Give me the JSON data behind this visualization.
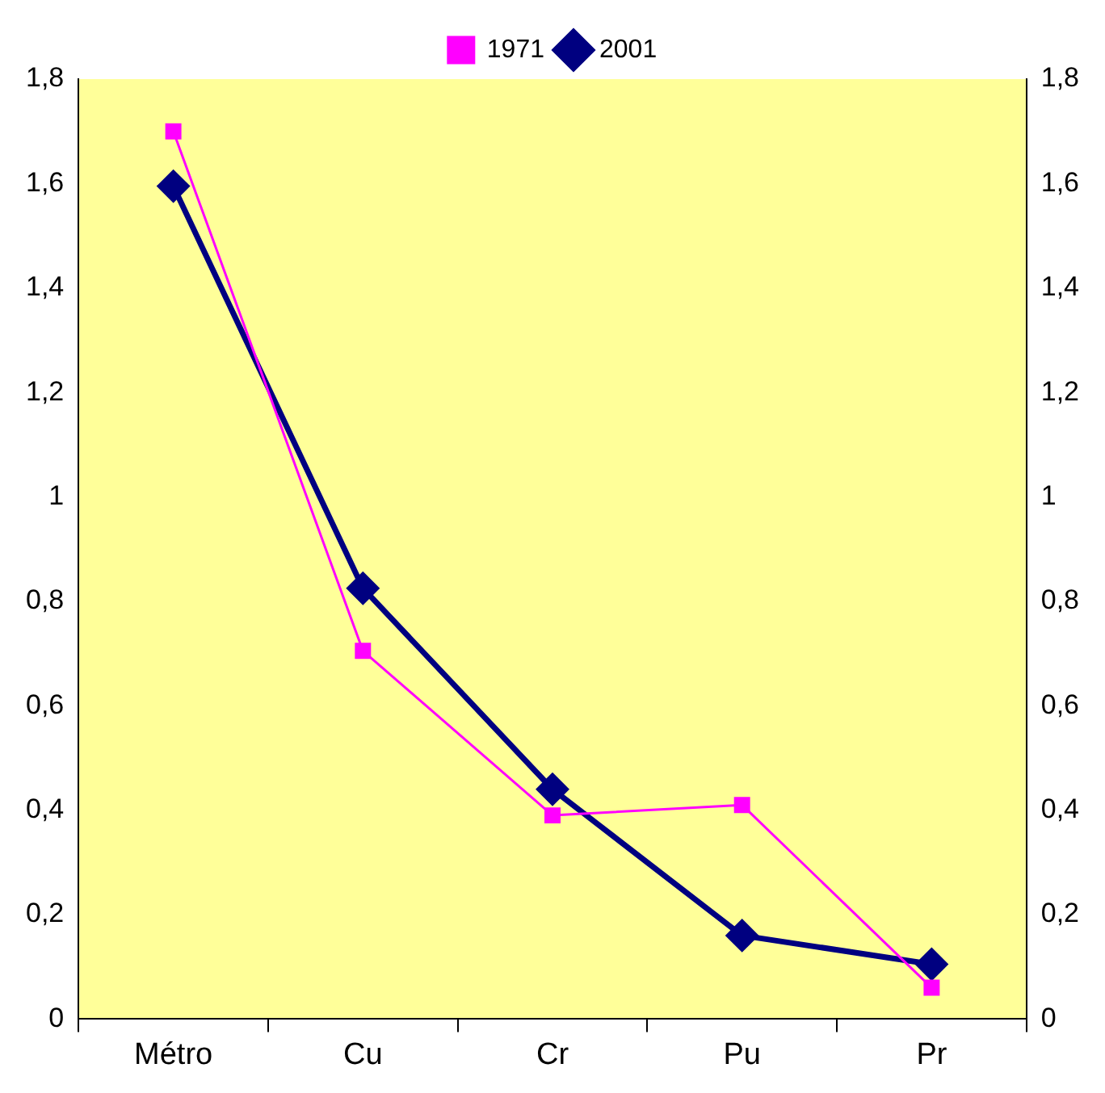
{
  "chart_data": {
    "type": "line",
    "categories": [
      "Métro",
      "Cu",
      "Cr",
      "Pu",
      "Pr"
    ],
    "series": [
      {
        "name": "1971",
        "color": "#ff00ff",
        "marker": "square",
        "values": [
          1.7,
          0.705,
          0.39,
          0.41,
          0.06
        ]
      },
      {
        "name": "2001",
        "color": "#000080",
        "marker": "diamond",
        "values": [
          1.595,
          0.825,
          0.44,
          0.16,
          0.105
        ]
      }
    ],
    "ylim": [
      0,
      1.8
    ],
    "yticks": [
      0,
      {
        "value": 0.2,
        "label": "0,2"
      },
      {
        "value": 0.4,
        "label": "0,4"
      },
      {
        "value": 0.6,
        "label": "0,6"
      },
      {
        "value": 0.8,
        "label": "0,8"
      },
      1,
      {
        "value": 1.2,
        "label": "1,2"
      },
      {
        "value": 1.4,
        "label": "1,4"
      },
      {
        "value": 1.6,
        "label": "1,6"
      },
      {
        "value": 1.8,
        "label": "1,8"
      }
    ],
    "y2lim": [
      0,
      1.8
    ],
    "y2ticks": [
      0,
      {
        "value": 0.2,
        "label": "0,2"
      },
      {
        "value": 0.4,
        "label": "0,4"
      },
      {
        "value": 0.6,
        "label": "0,6"
      },
      {
        "value": 0.8,
        "label": "0,8"
      },
      1,
      {
        "value": 1.2,
        "label": "1,2"
      },
      {
        "value": 1.4,
        "label": "1,4"
      },
      {
        "value": 1.6,
        "label": "1,6"
      },
      {
        "value": 1.8,
        "label": "1,8"
      }
    ],
    "grid": false,
    "legend": "top"
  }
}
